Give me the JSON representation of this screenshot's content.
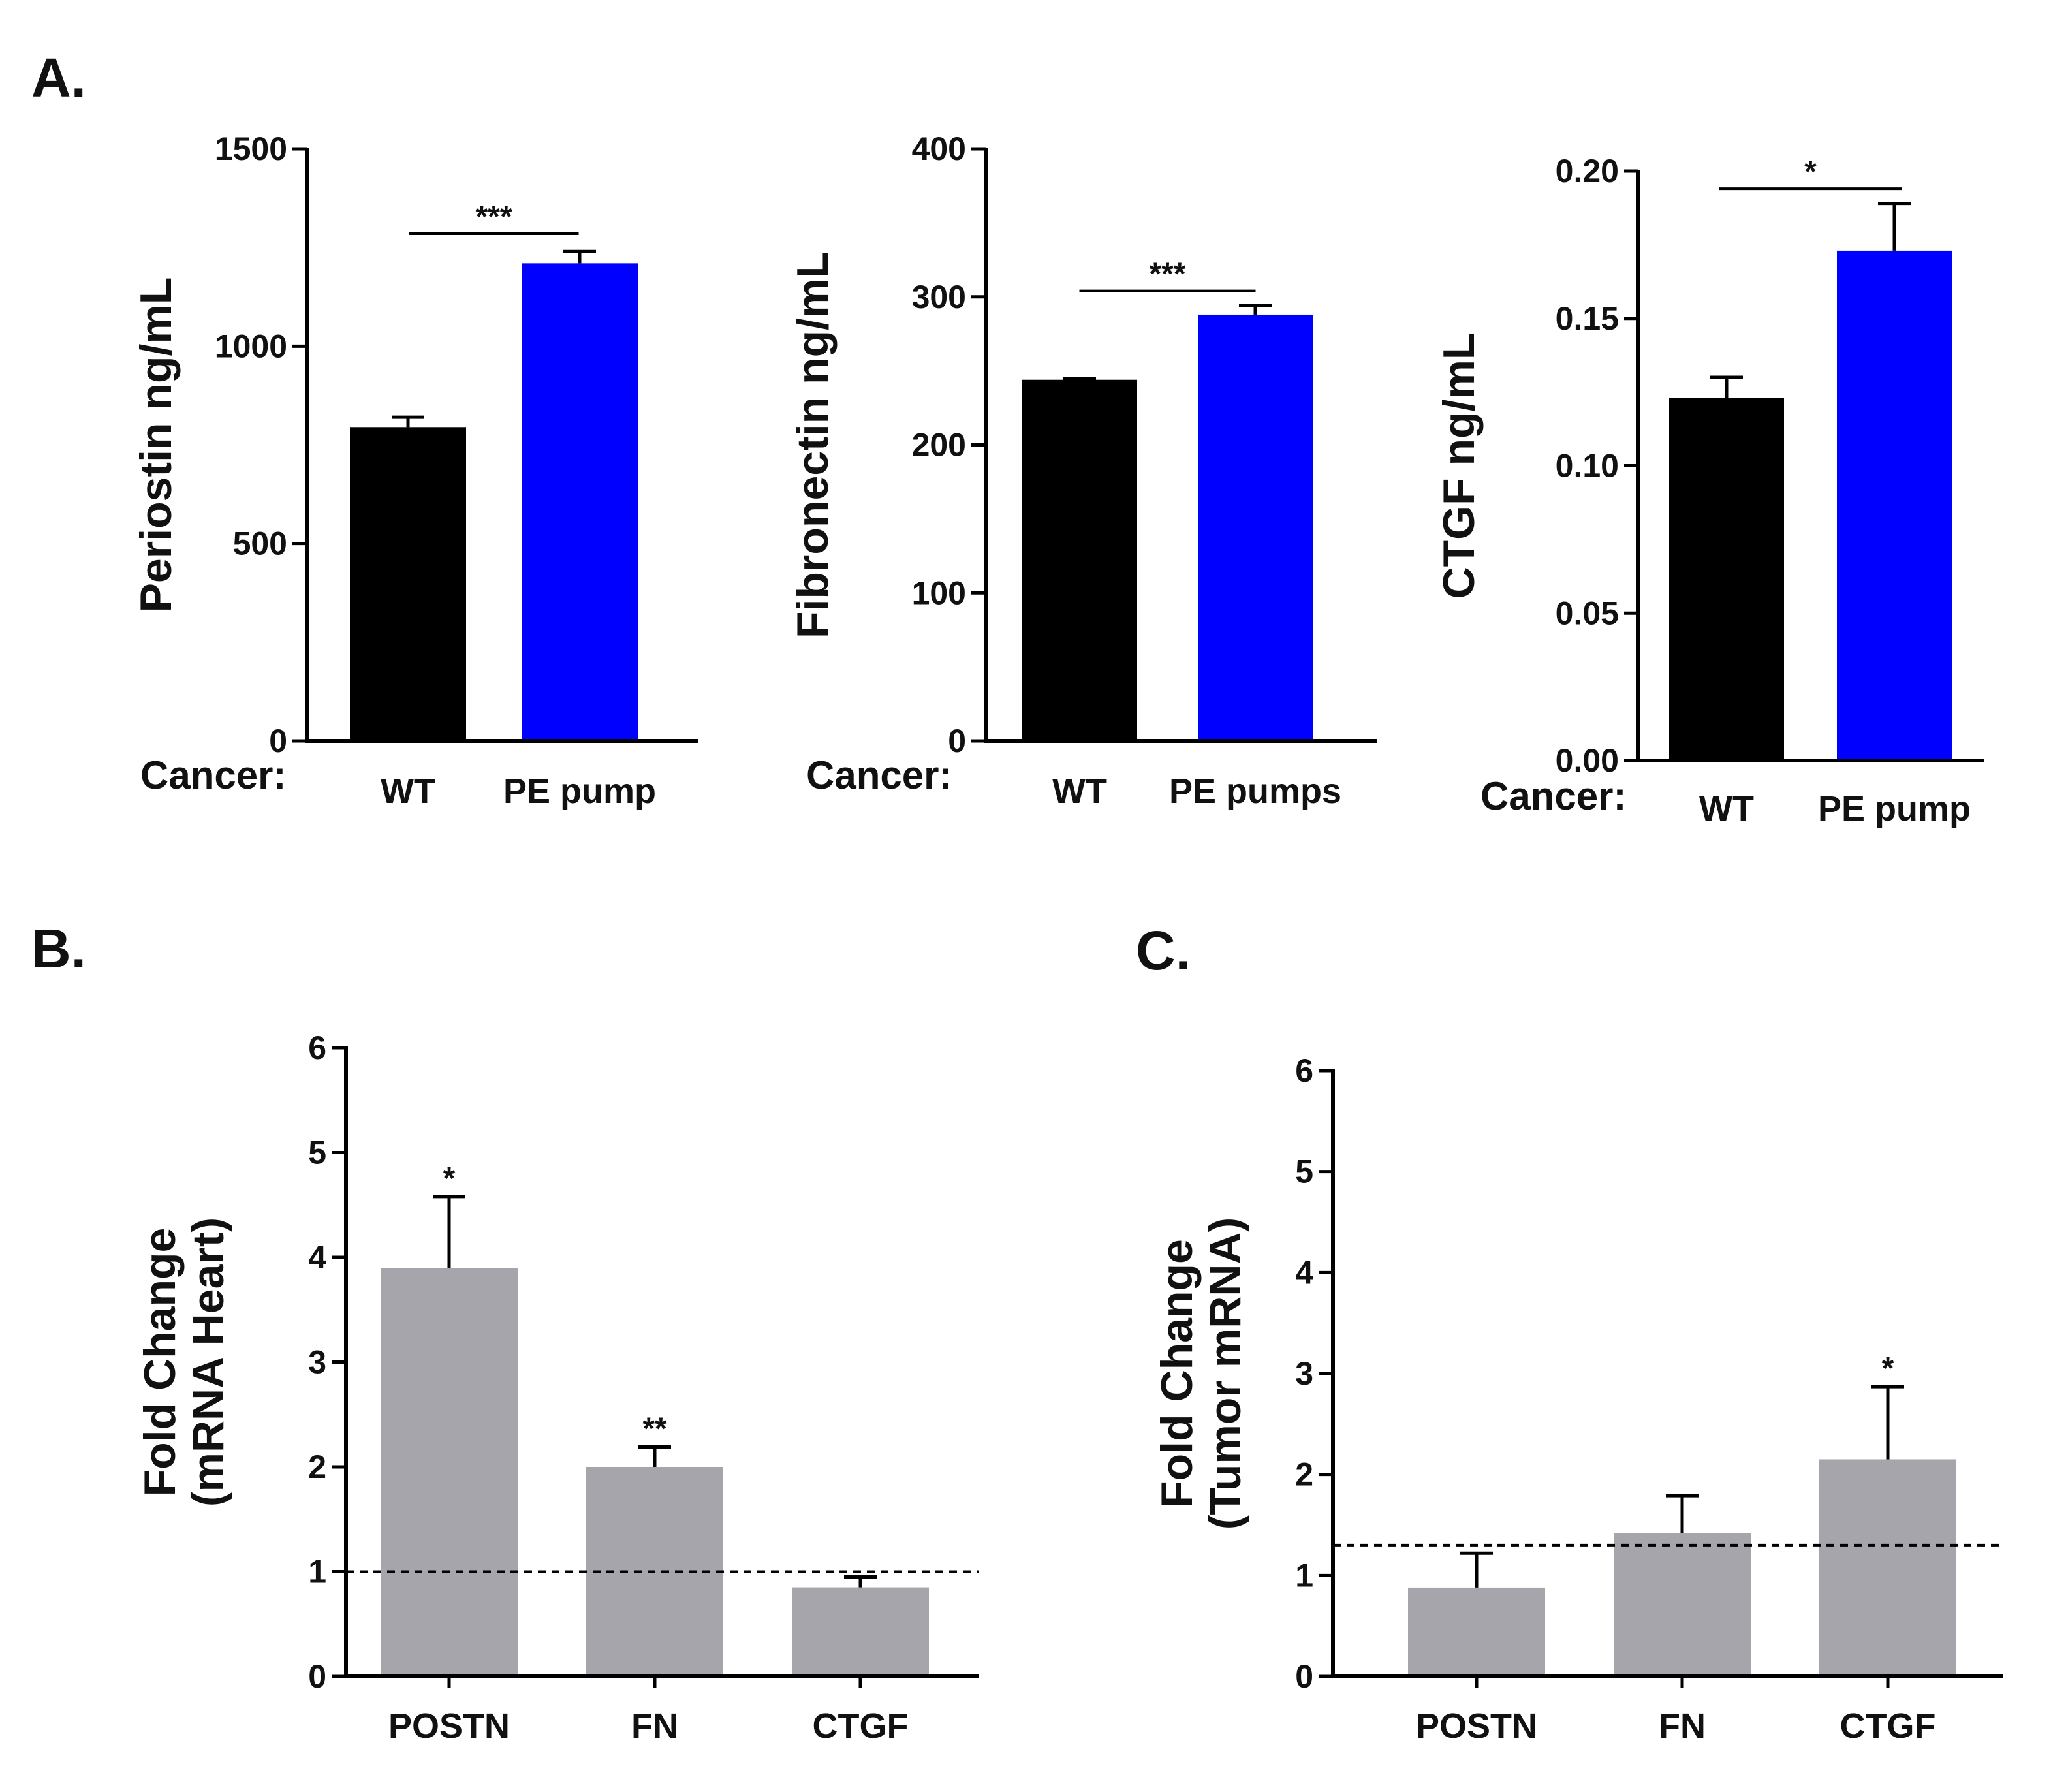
{
  "panels": {
    "A": {
      "label": "A."
    },
    "B": {
      "label": "B."
    },
    "C": {
      "label": "C."
    }
  },
  "chart_data": [
    {
      "id": "periostin",
      "panel": "A.",
      "type": "bar",
      "categories": [
        "WT",
        "PE pump"
      ],
      "values": [
        795,
        1210
      ],
      "errors": [
        25,
        30
      ],
      "colors": [
        "#000000",
        "#0000ff"
      ],
      "xlabel_prefix": "Cancer:",
      "ylabel": "Periostin ng/mL",
      "ylim": [
        0,
        1500
      ],
      "yticks": [
        0,
        500,
        1000,
        1500
      ],
      "ytick_labels": [
        "0",
        "500",
        "1000",
        "1500"
      ],
      "significance": [
        {
          "between": [
            0,
            1
          ],
          "label": "***",
          "y": 1285
        }
      ],
      "grid": false
    },
    {
      "id": "fibronectin",
      "panel": "A.",
      "type": "bar",
      "categories": [
        "WT",
        "PE pumps"
      ],
      "values": [
        244,
        288
      ],
      "errors": [
        1,
        6
      ],
      "colors": [
        "#000000",
        "#0000ff"
      ],
      "xlabel_prefix": "Cancer:",
      "ylabel": "Fibronectin ng/mL",
      "ylim": [
        0,
        400
      ],
      "yticks": [
        0,
        100,
        200,
        300,
        400
      ],
      "ytick_labels": [
        "0",
        "100",
        "200",
        "300",
        "400"
      ],
      "significance": [
        {
          "between": [
            0,
            1
          ],
          "label": "***",
          "y": 304
        }
      ],
      "grid": false
    },
    {
      "id": "ctgf",
      "panel": "A.",
      "type": "bar",
      "categories": [
        "WT",
        "PE pump"
      ],
      "values": [
        0.123,
        0.173
      ],
      "errors": [
        0.007,
        0.016
      ],
      "colors": [
        "#000000",
        "#0000ff"
      ],
      "xlabel_prefix": "Cancer:",
      "ylabel": "CTGF ng/mL",
      "ylim": [
        0,
        0.2
      ],
      "yticks": [
        0,
        0.05,
        0.1,
        0.15,
        0.2
      ],
      "ytick_labels": [
        "0.00",
        "0.05",
        "0.10",
        "0.15",
        "0.20"
      ],
      "significance": [
        {
          "between": [
            0,
            1
          ],
          "label": "*",
          "y": 0.194
        }
      ],
      "grid": false
    },
    {
      "id": "heart-mrna",
      "panel": "B.",
      "type": "bar",
      "categories": [
        "POSTN",
        "FN",
        "CTGF"
      ],
      "values": [
        3.9,
        2.0,
        0.85
      ],
      "errors": [
        0.68,
        0.19,
        0.1
      ],
      "colors": [
        "#a6a5ab",
        "#a6a5ab",
        "#a6a5ab"
      ],
      "ylabel_lines": [
        "Fold Change",
        "(mRNA Heart)"
      ],
      "ylim": [
        0,
        6
      ],
      "yticks": [
        0,
        1,
        2,
        3,
        4,
        5,
        6
      ],
      "ytick_labels": [
        "0",
        "1",
        "2",
        "3",
        "4",
        "5",
        "6"
      ],
      "reference_line": 1.0,
      "bar_labels": [
        "*",
        "**",
        ""
      ],
      "grid": false
    },
    {
      "id": "tumor-mrna",
      "panel": "C.",
      "type": "bar",
      "categories": [
        "POSTN",
        "FN",
        "CTGF"
      ],
      "values": [
        0.88,
        1.42,
        2.15
      ],
      "errors": [
        0.34,
        0.37,
        0.72
      ],
      "colors": [
        "#a6a5ab",
        "#a6a5ab",
        "#a6a5ab"
      ],
      "ylabel_lines": [
        "Fold Change",
        "(Tumor mRNA)"
      ],
      "ylim": [
        0,
        6
      ],
      "yticks": [
        0,
        1,
        2,
        3,
        4,
        5,
        6
      ],
      "ytick_labels": [
        "0",
        "1",
        "2",
        "3",
        "4",
        "5",
        "6"
      ],
      "reference_line": 1.3,
      "bar_labels": [
        "",
        "",
        "*"
      ],
      "grid": false
    }
  ]
}
